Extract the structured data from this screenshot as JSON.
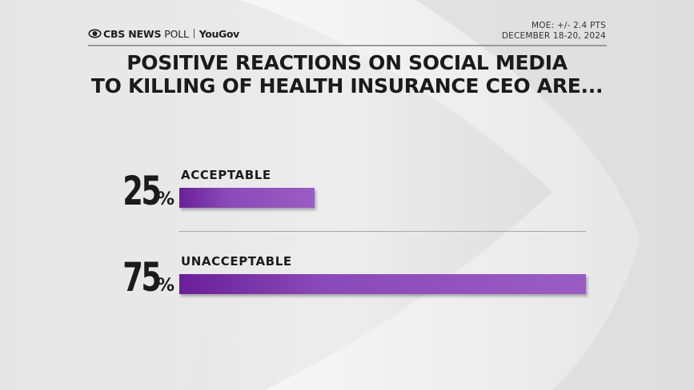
{
  "header": {
    "brand": "CBS NEWS POLL",
    "brand_cbs": "CBS NEWS",
    "brand_poll": "POLL",
    "partner": "YouGov",
    "moe": "MOE: +/- 2.4 PTS",
    "dates": "DECEMBER 18-20, 2024"
  },
  "colors": {
    "bar": "#8a49b8",
    "bar_dark": "#6a1f9a",
    "text": "#1a1a1a"
  },
  "chart_data": {
    "type": "bar",
    "orientation": "horizontal",
    "title": "POSITIVE REACTIONS ON SOCIAL MEDIA TO KILLING OF HEALTH INSURANCE CEO ARE...",
    "title_line1": "POSITIVE REACTIONS ON SOCIAL MEDIA",
    "title_line2": "TO KILLING OF HEALTH INSURANCE CEO ARE...",
    "categories": [
      "ACCEPTABLE",
      "UNACCEPTABLE"
    ],
    "values": [
      25,
      75
    ],
    "unit": "%",
    "xlim": [
      0,
      75
    ]
  }
}
